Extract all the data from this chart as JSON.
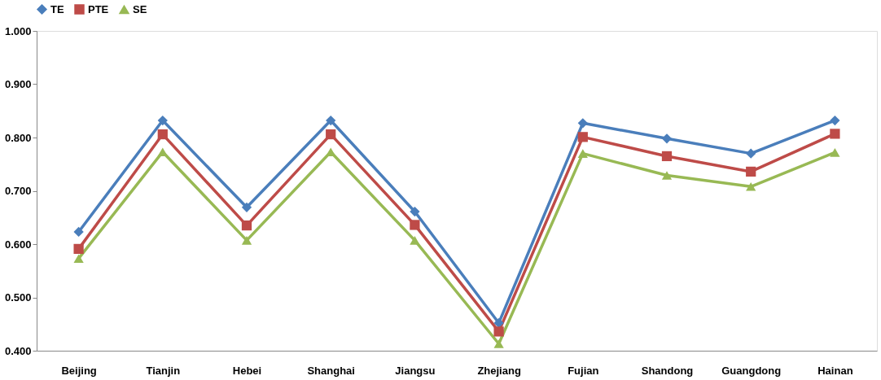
{
  "chart_data": {
    "type": "line",
    "categories": [
      "Beijing",
      "Tianjin",
      "Hebei",
      "Shanghai",
      "Jiangsu",
      "Zhejiang",
      "Fujian",
      "Shandong",
      "Guangdong",
      "Hainan"
    ],
    "series": [
      {
        "name": "TE",
        "color": "#4a7ebb",
        "marker": "diamond",
        "values": [
          0.623,
          0.832,
          0.669,
          0.832,
          0.661,
          0.452,
          0.827,
          0.798,
          0.77,
          0.832
        ]
      },
      {
        "name": "PTE",
        "color": "#be4b48",
        "marker": "square",
        "values": [
          0.591,
          0.806,
          0.635,
          0.806,
          0.636,
          0.436,
          0.801,
          0.765,
          0.736,
          0.807
        ]
      },
      {
        "name": "SE",
        "color": "#98b954",
        "marker": "triangle",
        "values": [
          0.573,
          0.773,
          0.607,
          0.773,
          0.607,
          0.413,
          0.77,
          0.729,
          0.708,
          0.772
        ]
      }
    ],
    "ylim": [
      0.4,
      1.0
    ],
    "yticks": [
      {
        "value": 0.4,
        "label": "0.400"
      },
      {
        "value": 0.5,
        "label": "0.500"
      },
      {
        "value": 0.6,
        "label": "0.600"
      },
      {
        "value": 0.7,
        "label": "0.700"
      },
      {
        "value": 0.8,
        "label": "0.800"
      },
      {
        "value": 0.9,
        "label": "0.900"
      },
      {
        "value": 1.0,
        "label": "1.000"
      }
    ],
    "grid": false,
    "legend": "top",
    "line_style": "solid"
  }
}
